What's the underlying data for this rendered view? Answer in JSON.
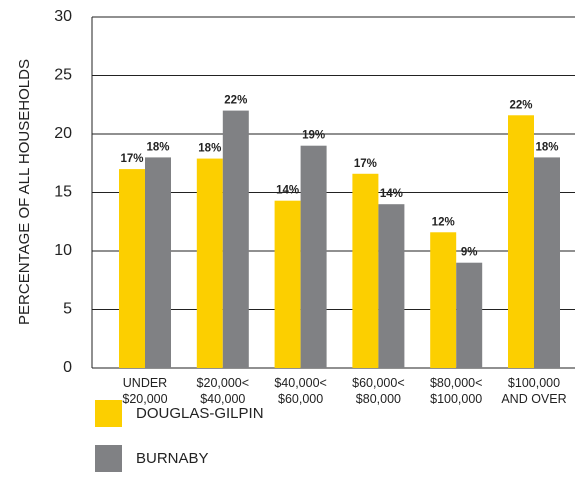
{
  "chart_data": {
    "type": "bar",
    "y_label": "PERCENTAGE OF ALL HOUSEHOLDS",
    "categories": [
      "UNDER\n$20,000",
      "$20,000<\n$40,000",
      "$40,000<\n$60,000",
      "$60,000<\n$80,000",
      "$80,000<\n$100,000",
      "$100,000\nAND OVER"
    ],
    "series": [
      {
        "name": "DOUGLAS-GILPIN",
        "color": "#fccf00",
        "values": [
          17,
          17.9,
          14.3,
          16.6,
          11.6,
          21.6
        ],
        "value_labels": [
          "17%",
          "18%",
          "14%",
          "17%",
          "12%",
          "22%"
        ]
      },
      {
        "name": "BURNABY",
        "color": "#808184",
        "values": [
          18,
          22,
          19,
          14,
          9,
          18
        ],
        "value_labels": [
          "18%",
          "22%",
          "19%",
          "14%",
          "9%",
          "18%"
        ]
      }
    ],
    "ylim": [
      0,
      30
    ],
    "yticks": [
      0,
      5,
      10,
      15,
      20,
      25,
      30
    ],
    "grid": true
  }
}
